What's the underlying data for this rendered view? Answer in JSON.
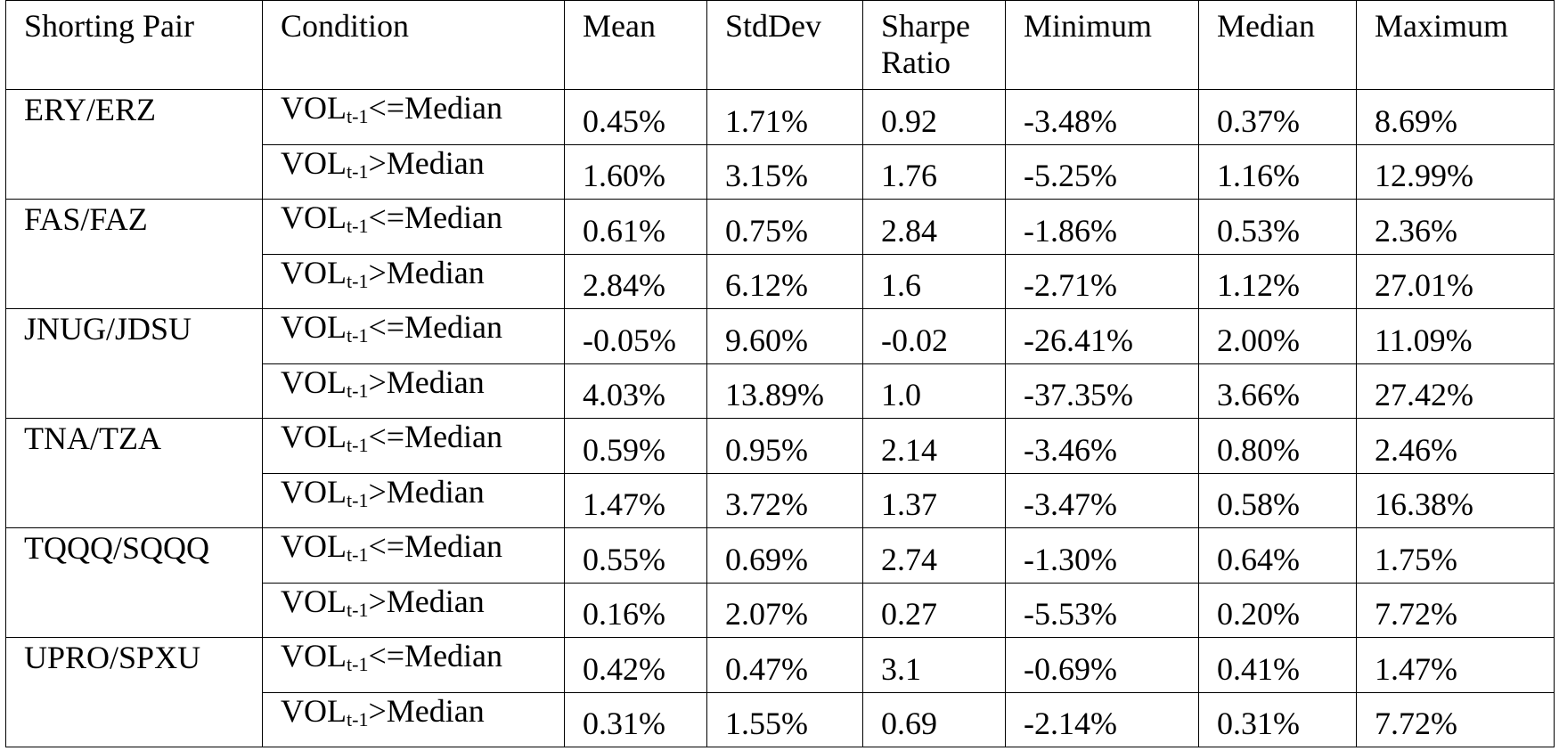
{
  "columns": {
    "pair": "Shorting Pair",
    "condition": "Condition",
    "mean": "Mean",
    "stddev": "StdDev",
    "sharpe": "Sharpe Ratio",
    "minimum": "Minimum",
    "median": "Median",
    "maximum": "Maximum"
  },
  "condition_parts": {
    "base": "VOL",
    "subscript": "t-1",
    "le": "<=Median",
    "gt": ">Median"
  },
  "pairs": [
    {
      "name": "ERY/ERZ",
      "rows": [
        {
          "mean": "0.45%",
          "stddev": "1.71%",
          "sharpe": "0.92",
          "min": "-3.48%",
          "median": "0.37%",
          "max": "8.69%"
        },
        {
          "mean": "1.60%",
          "stddev": "3.15%",
          "sharpe": "1.76",
          "min": "-5.25%",
          "median": "1.16%",
          "max": "12.99%"
        }
      ]
    },
    {
      "name": "FAS/FAZ",
      "rows": [
        {
          "mean": "0.61%",
          "stddev": "0.75%",
          "sharpe": "2.84",
          "min": "-1.86%",
          "median": "0.53%",
          "max": "2.36%"
        },
        {
          "mean": "2.84%",
          "stddev": "6.12%",
          "sharpe": "1.6",
          "min": "-2.71%",
          "median": "1.12%",
          "max": "27.01%"
        }
      ]
    },
    {
      "name": "JNUG/JDSU",
      "rows": [
        {
          "mean": "-0.05%",
          "stddev": "9.60%",
          "sharpe": "-0.02",
          "min": "-26.41%",
          "median": "2.00%",
          "max": "11.09%"
        },
        {
          "mean": "4.03%",
          "stddev": "13.89%",
          "sharpe": "1.0",
          "min": "-37.35%",
          "median": "3.66%",
          "max": "27.42%"
        }
      ]
    },
    {
      "name": "TNA/TZA",
      "rows": [
        {
          "mean": "0.59%",
          "stddev": "0.95%",
          "sharpe": "2.14",
          "min": "-3.46%",
          "median": "0.80%",
          "max": "2.46%"
        },
        {
          "mean": "1.47%",
          "stddev": "3.72%",
          "sharpe": "1.37",
          "min": "-3.47%",
          "median": "0.58%",
          "max": "16.38%"
        }
      ]
    },
    {
      "name": "TQQQ/SQQQ",
      "rows": [
        {
          "mean": "0.55%",
          "stddev": "0.69%",
          "sharpe": "2.74",
          "min": "-1.30%",
          "median": "0.64%",
          "max": "1.75%"
        },
        {
          "mean": "0.16%",
          "stddev": "2.07%",
          "sharpe": "0.27",
          "min": "-5.53%",
          "median": "0.20%",
          "max": "7.72%"
        }
      ]
    },
    {
      "name": "UPRO/SPXU",
      "rows": [
        {
          "mean": "0.42%",
          "stddev": "0.47%",
          "sharpe": "3.1",
          "min": "-0.69%",
          "median": "0.41%",
          "max": "1.47%"
        },
        {
          "mean": "0.31%",
          "stddev": "1.55%",
          "sharpe": "0.69",
          "min": "-2.14%",
          "median": "0.31%",
          "max": "7.72%"
        }
      ]
    }
  ]
}
